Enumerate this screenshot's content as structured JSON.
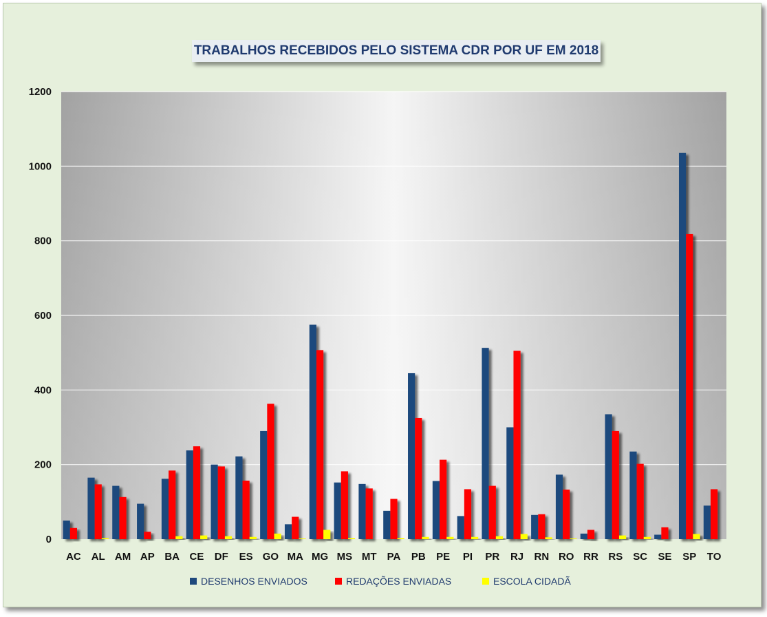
{
  "chart_data": {
    "type": "bar",
    "title": "TRABALHOS RECEBIDOS PELO SISTEMA CDR  POR UF EM 2018",
    "xlabel": "",
    "ylabel": "",
    "ylim": [
      0,
      1200
    ],
    "yticks": [
      "0",
      "200",
      "400",
      "600",
      "800",
      "1000",
      "1200"
    ],
    "grid": true,
    "legend_position": "bottom",
    "categories": [
      "AC",
      "AL",
      "AM",
      "AP",
      "BA",
      "CE",
      "DF",
      "ES",
      "GO",
      "MA",
      "MG",
      "MS",
      "MT",
      "PA",
      "PB",
      "PE",
      "PI",
      "PR",
      "RJ",
      "RN",
      "RO",
      "RR",
      "RS",
      "SC",
      "SE",
      "SP",
      "TO"
    ],
    "series": [
      {
        "name": "DESENHOS ENVIADOS",
        "color": "#1f497d",
        "values": [
          50,
          165,
          143,
          95,
          162,
          238,
          200,
          222,
          290,
          40,
          575,
          152,
          148,
          76,
          445,
          156,
          62,
          513,
          300,
          65,
          173,
          15,
          335,
          235,
          12,
          1036,
          90
        ]
      },
      {
        "name": "REDAÇÕES ENVIADAS",
        "color": "#ff0000",
        "values": [
          30,
          147,
          113,
          20,
          184,
          249,
          195,
          157,
          363,
          60,
          507,
          182,
          136,
          108,
          325,
          213,
          134,
          143,
          505,
          67,
          133,
          25,
          290,
          202,
          32,
          818,
          134
        ]
      },
      {
        "name": "ESCOLA CIDADÃ",
        "color": "#ffff00",
        "values": [
          0,
          3,
          0,
          0,
          8,
          10,
          8,
          6,
          15,
          2,
          25,
          3,
          0,
          3,
          6,
          6,
          6,
          8,
          14,
          5,
          2,
          0,
          10,
          6,
          0,
          14,
          0
        ]
      }
    ]
  }
}
